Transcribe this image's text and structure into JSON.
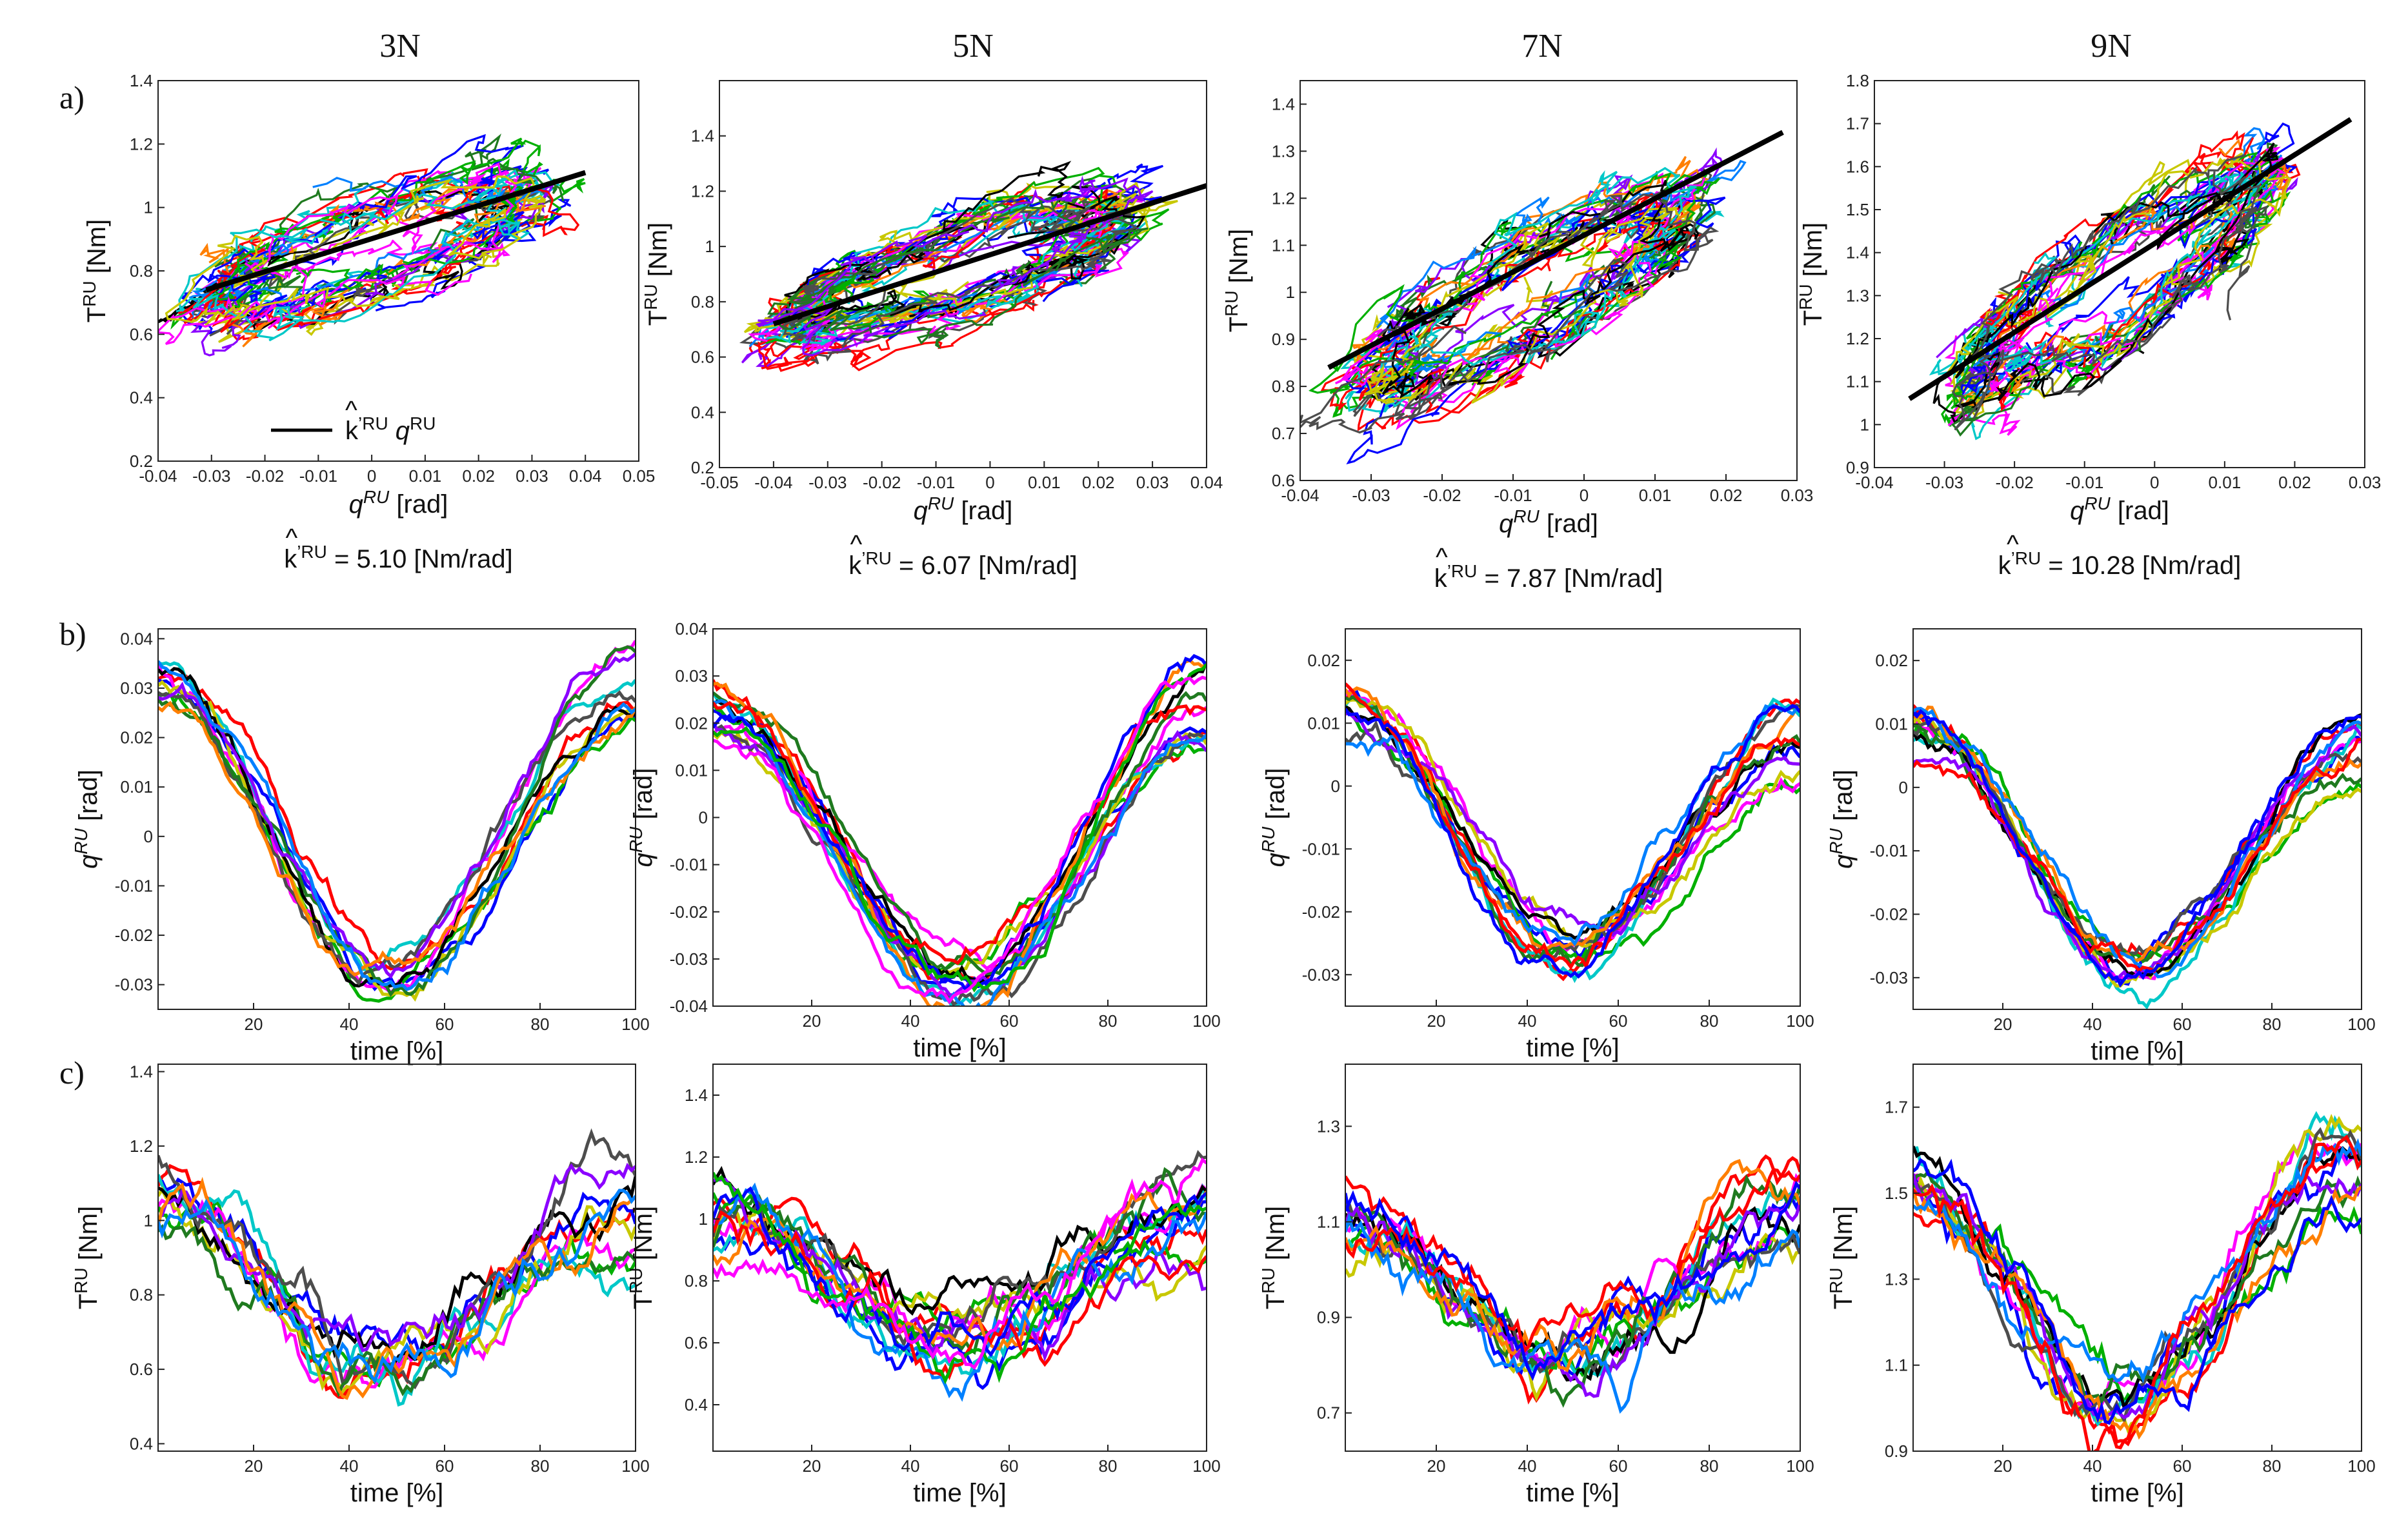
{
  "figure": {
    "row_labels": [
      "a)",
      "b)",
      "c)"
    ],
    "column_titles": [
      "3N",
      "5N",
      "7N",
      "9N"
    ]
  },
  "chart_data": [
    {
      "type": "scatter-trajectories",
      "row": "a",
      "column": "3N",
      "xlabel_main": "q",
      "xlabel_sup": "RU",
      "xlabel_tail": " [rad]",
      "ylabel_main": "T",
      "ylabel_sup": "RU",
      "ylabel_tail": " [Nm]",
      "xlim": [
        -0.04,
        0.05
      ],
      "ylim": [
        0.2,
        1.4
      ],
      "xticks": [
        -0.04,
        -0.03,
        -0.02,
        -0.01,
        0,
        0.01,
        0.02,
        0.03,
        0.04,
        0.05
      ],
      "xtick_labels": [
        "-0.04",
        "-0.03",
        "-0.02",
        "-0.01",
        "0",
        "0.01",
        "0.02",
        "0.03",
        "0.04",
        "0.05"
      ],
      "yticks": [
        0.2,
        0.4,
        0.6,
        0.8,
        1,
        1.2,
        1.4
      ],
      "ytick_labels": [
        "0.2",
        "0.4",
        "0.6",
        "0.8",
        "1",
        "1.2",
        "1.4"
      ],
      "fit_line": {
        "x": [
          -0.031,
          0.04
        ],
        "y": [
          0.74,
          1.11
        ]
      },
      "legend": {
        "prefix": "k",
        "prime_sup": "’RU",
        "suffix": " q",
        "suffix_sup": "RU",
        "position": "bottom-left"
      },
      "k_label": {
        "hat": "k",
        "sup": "’RU",
        "value": " = 5.10 [Nm/rad]"
      },
      "trials": 18,
      "x_center": 0.0,
      "x_amp": 0.032,
      "y_center": 0.88,
      "y_amp": 0.28
    },
    {
      "type": "scatter-trajectories",
      "row": "a",
      "column": "5N",
      "xlabel_main": "q",
      "xlabel_sup": "RU",
      "xlabel_tail": " [rad]",
      "ylabel_main": "T",
      "ylabel_sup": "RU",
      "ylabel_tail": " [Nm]",
      "xlim": [
        -0.05,
        0.04
      ],
      "ylim": [
        0.2,
        1.6
      ],
      "xticks": [
        -0.05,
        -0.04,
        -0.03,
        -0.02,
        -0.01,
        0,
        0.01,
        0.02,
        0.03,
        0.04
      ],
      "xtick_labels": [
        "-0.05",
        "-0.04",
        "-0.03",
        "-0.02",
        "-0.01",
        "0",
        "0.01",
        "0.02",
        "0.03",
        "0.04"
      ],
      "yticks": [
        0.2,
        0.4,
        0.6,
        0.8,
        1,
        1.2,
        1.4
      ],
      "ytick_labels": [
        "0.2",
        "0.4",
        "0.6",
        "0.8",
        "1",
        "1.2",
        "1.4"
      ],
      "fit_line": {
        "x": [
          -0.04,
          0.04
        ],
        "y": [
          0.72,
          1.22
        ]
      },
      "k_label": {
        "hat": "k",
        "sup": "’RU",
        "value": " = 6.07 [Nm/rad]"
      },
      "trials": 22,
      "x_center": -0.006,
      "x_amp": 0.034,
      "y_center": 0.92,
      "y_amp": 0.3
    },
    {
      "type": "scatter-trajectories",
      "row": "a",
      "column": "7N",
      "xlabel_main": "q",
      "xlabel_sup": "RU",
      "xlabel_tail": " [rad]",
      "ylabel_main": "T",
      "ylabel_sup": "RU",
      "ylabel_tail": " [Nm]",
      "xlim": [
        -0.04,
        0.03
      ],
      "ylim": [
        0.6,
        1.45
      ],
      "xticks": [
        -0.04,
        -0.03,
        -0.02,
        -0.01,
        0,
        0.01,
        0.02,
        0.03
      ],
      "xtick_labels": [
        "-0.04",
        "-0.03",
        "-0.02",
        "-0.01",
        "0",
        "0.01",
        "0.02",
        "0.03"
      ],
      "yticks": [
        0.6,
        0.7,
        0.8,
        0.9,
        1,
        1.1,
        1.2,
        1.3,
        1.4
      ],
      "ytick_labels": [
        "0.6",
        "0.7",
        "0.8",
        "0.9",
        "1",
        "1.1",
        "1.2",
        "1.3",
        "1.4"
      ],
      "fit_line": {
        "x": [
          -0.036,
          0.028
        ],
        "y": [
          0.84,
          1.34
        ]
      },
      "k_label": {
        "hat": "k",
        "sup": "’RU",
        "value": " = 7.87 [Nm/rad]"
      },
      "trials": 20,
      "x_center": -0.008,
      "x_amp": 0.024,
      "y_center": 1.0,
      "y_amp": 0.22
    },
    {
      "type": "scatter-trajectories",
      "row": "a",
      "column": "9N",
      "xlabel_main": "q",
      "xlabel_sup": "RU",
      "xlabel_tail": " [rad]",
      "ylabel_main": "T",
      "ylabel_sup": "RU",
      "ylabel_tail": " [Nm]",
      "xlim": [
        -0.04,
        0.03
      ],
      "ylim": [
        0.9,
        1.8
      ],
      "xticks": [
        -0.04,
        -0.03,
        -0.02,
        -0.01,
        0,
        0.01,
        0.02,
        0.03
      ],
      "xtick_labels": [
        "-0.04",
        "-0.03",
        "-0.02",
        "-0.01",
        "0",
        "0.01",
        "0.02",
        "0.03"
      ],
      "yticks": [
        0.9,
        1.0,
        1.1,
        1.2,
        1.3,
        1.4,
        1.5,
        1.6,
        1.7,
        1.8
      ],
      "ytick_labels": [
        "0.9",
        "1",
        "1.1",
        "1.2",
        "1.3",
        "1.4",
        "1.5",
        "1.6",
        "1.7",
        "1.8"
      ],
      "fit_line": {
        "x": [
          -0.035,
          0.028
        ],
        "y": [
          1.06,
          1.71
        ]
      },
      "k_label": {
        "hat": "k",
        "sup": "’RU",
        "value": " = 10.28 [Nm/rad]"
      },
      "trials": 20,
      "x_center": -0.006,
      "x_amp": 0.022,
      "y_center": 1.32,
      "y_amp": 0.26
    },
    {
      "type": "line",
      "row": "b",
      "column": "3N",
      "xlabel": "time [%]",
      "ylabel_main": "q",
      "ylabel_sup": "RU",
      "ylabel_tail": " [rad]",
      "xlim": [
        0,
        100
      ],
      "ylim": [
        -0.035,
        0.042
      ],
      "xticks": [
        20,
        40,
        60,
        80,
        100
      ],
      "xtick_labels": [
        "20",
        "40",
        "60",
        "80",
        "100"
      ],
      "yticks": [
        -0.03,
        -0.02,
        -0.01,
        0,
        0.01,
        0.02,
        0.03,
        0.04
      ],
      "ytick_labels": [
        "-0.03",
        "-0.02",
        "-0.01",
        "0",
        "0.01",
        "0.02",
        "0.03",
        "0.04"
      ],
      "trials": 12,
      "start": 0.031,
      "min": -0.028,
      "min_at": 49,
      "end": 0.031
    },
    {
      "type": "line",
      "row": "b",
      "column": "5N",
      "xlabel": "time [%]",
      "ylabel_main": "q",
      "ylabel_sup": "RU",
      "ylabel_tail": " [rad]",
      "xlim": [
        0,
        100
      ],
      "ylim": [
        -0.04,
        0.04
      ],
      "xticks": [
        20,
        40,
        60,
        80,
        100
      ],
      "xtick_labels": [
        "20",
        "40",
        "60",
        "80",
        "100"
      ],
      "yticks": [
        -0.04,
        -0.03,
        -0.02,
        -0.01,
        0,
        0.01,
        0.02,
        0.03,
        0.04
      ],
      "ytick_labels": [
        "-0.04",
        "-0.03",
        "-0.02",
        "-0.01",
        "0",
        "0.01",
        "0.02",
        "0.03",
        "0.04"
      ],
      "trials": 16,
      "start": 0.022,
      "min": -0.035,
      "min_at": 50,
      "end": 0.024
    },
    {
      "type": "line",
      "row": "b",
      "column": "7N",
      "xlabel": "time [%]",
      "ylabel_main": "q",
      "ylabel_sup": "RU",
      "ylabel_tail": " [rad]",
      "xlim": [
        0,
        100
      ],
      "ylim": [
        -0.035,
        0.025
      ],
      "xticks": [
        20,
        40,
        60,
        80,
        100
      ],
      "xtick_labels": [
        "20",
        "40",
        "60",
        "80",
        "100"
      ],
      "yticks": [
        -0.03,
        -0.02,
        -0.01,
        0,
        0.01,
        0.02
      ],
      "ytick_labels": [
        "-0.03",
        "-0.02",
        "-0.01",
        "0",
        "0.01",
        "0.02"
      ],
      "trials": 14,
      "start": 0.012,
      "min": -0.026,
      "min_at": 50,
      "end": 0.008
    },
    {
      "type": "line",
      "row": "b",
      "column": "9N",
      "xlabel": "time [%]",
      "ylabel_main": "q",
      "ylabel_sup": "RU",
      "ylabel_tail": " [rad]",
      "xlim": [
        0,
        100
      ],
      "ylim": [
        -0.035,
        0.025
      ],
      "xticks": [
        20,
        40,
        60,
        80,
        100
      ],
      "xtick_labels": [
        "20",
        "40",
        "60",
        "80",
        "100"
      ],
      "yticks": [
        -0.03,
        -0.02,
        -0.01,
        0,
        0.01,
        0.02
      ],
      "ytick_labels": [
        "-0.03",
        "-0.02",
        "-0.01",
        "0",
        "0.01",
        "0.02"
      ],
      "trials": 14,
      "start": 0.009,
      "min": -0.029,
      "min_at": 50,
      "end": 0.007
    },
    {
      "type": "line",
      "row": "c",
      "column": "3N",
      "xlabel": "time [%]",
      "ylabel_main": "T",
      "ylabel_sup": "RU",
      "ylabel_tail": " [Nm]",
      "xlim": [
        0,
        100
      ],
      "ylim": [
        0.38,
        1.42
      ],
      "xticks": [
        20,
        40,
        60,
        80,
        100
      ],
      "xtick_labels": [
        "20",
        "40",
        "60",
        "80",
        "100"
      ],
      "yticks": [
        0.4,
        0.6,
        0.8,
        1,
        1.2,
        1.4
      ],
      "ytick_labels": [
        "0.4",
        "0.6",
        "0.8",
        "1",
        "1.2",
        "1.4"
      ],
      "trials": 12,
      "start": 1.05,
      "min": 0.62,
      "min_at": 46,
      "end": 1.08
    },
    {
      "type": "line",
      "row": "c",
      "column": "5N",
      "xlabel": "time [%]",
      "ylabel_main": "T",
      "ylabel_sup": "RU",
      "ylabel_tail": " [Nm]",
      "xlim": [
        0,
        100
      ],
      "ylim": [
        0.25,
        1.5
      ],
      "xticks": [
        20,
        40,
        60,
        80,
        100
      ],
      "xtick_labels": [
        "20",
        "40",
        "60",
        "80",
        "100"
      ],
      "yticks": [
        0.4,
        0.6,
        0.8,
        1,
        1.2,
        1.4
      ],
      "ytick_labels": [
        "0.4",
        "0.6",
        "0.8",
        "1",
        "1.2",
        "1.4"
      ],
      "trials": 16,
      "start": 1.0,
      "min": 0.6,
      "min_at": 47,
      "end": 1.05
    },
    {
      "type": "line",
      "row": "c",
      "column": "7N",
      "xlabel": "time [%]",
      "ylabel_main": "T",
      "ylabel_sup": "RU",
      "ylabel_tail": " [Nm]",
      "xlim": [
        0,
        100
      ],
      "ylim": [
        0.62,
        1.43
      ],
      "xticks": [
        20,
        40,
        60,
        80,
        100
      ],
      "xtick_labels": [
        "20",
        "40",
        "60",
        "80",
        "100"
      ],
      "yticks": [
        0.7,
        0.9,
        1.1,
        1.3
      ],
      "ytick_labels": [
        "0.7",
        "0.9",
        "1.1",
        "1.3"
      ],
      "trials": 14,
      "start": 1.1,
      "min": 0.82,
      "min_at": 46,
      "end": 1.14
    },
    {
      "type": "line",
      "row": "c",
      "column": "9N",
      "xlabel": "time [%]",
      "ylabel_main": "T",
      "ylabel_sup": "RU",
      "ylabel_tail": " [Nm]",
      "xlim": [
        0,
        100
      ],
      "ylim": [
        0.9,
        1.8
      ],
      "xticks": [
        20,
        40,
        60,
        80,
        100
      ],
      "xtick_labels": [
        "20",
        "40",
        "60",
        "80",
        "100"
      ],
      "yticks": [
        0.9,
        1.1,
        1.3,
        1.5,
        1.7
      ],
      "ytick_labels": [
        "0.9",
        "1.1",
        "1.3",
        "1.5",
        "1.7"
      ],
      "trials": 14,
      "start": 1.5,
      "min": 1.02,
      "min_at": 46,
      "end": 1.55
    }
  ],
  "colors": {
    "trace_palette": [
      "#ff0000",
      "#0000ff",
      "#00b000",
      "#ff00ff",
      "#00c8c8",
      "#c8c800",
      "#000000",
      "#4d4d4d",
      "#1f7a1f",
      "#8b00ff",
      "#ff7f00",
      "#0080ff"
    ],
    "fit_line": "#000000",
    "axis": "#222222"
  }
}
